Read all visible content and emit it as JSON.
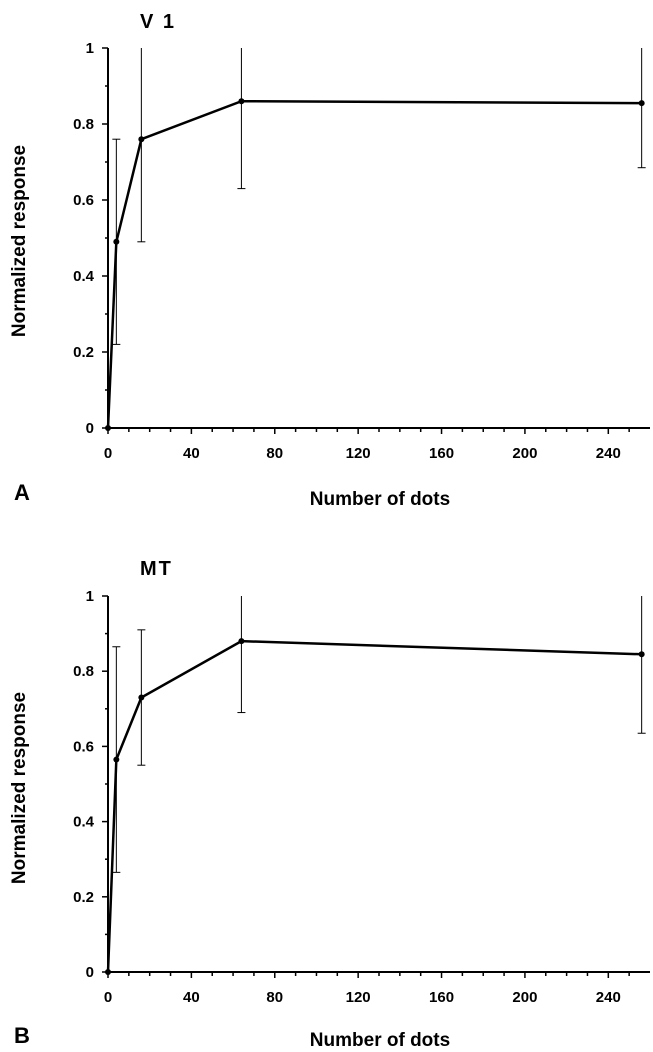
{
  "chart_data": [
    {
      "type": "line",
      "panel_letter": "A",
      "title": "V 1",
      "xlabel": "Number of dots",
      "ylabel": "Normalized response",
      "xlim": [
        0,
        260
      ],
      "ylim": [
        0,
        1
      ],
      "x_ticks": [
        "0",
        "40",
        "80",
        "120",
        "160",
        "200",
        "240"
      ],
      "y_ticks": [
        "0",
        "0.2",
        "0.4",
        "0.6",
        "0.8",
        "1"
      ],
      "grid": false,
      "legend": "none",
      "series": [
        {
          "x": [
            0,
            4,
            16,
            64,
            256
          ],
          "y": [
            0,
            0.49,
            0.76,
            0.86,
            0.855
          ],
          "error_low": [
            null,
            0.22,
            0.49,
            0.63,
            0.685
          ],
          "error_high": [
            null,
            0.76,
            1.0,
            1.0,
            1.0
          ]
        }
      ]
    },
    {
      "type": "line",
      "panel_letter": "B",
      "title": "MT",
      "xlabel": "Number of dots",
      "ylabel": "Normalized response",
      "xlim": [
        0,
        260
      ],
      "ylim": [
        0,
        1
      ],
      "x_ticks": [
        "0",
        "40",
        "80",
        "120",
        "160",
        "200",
        "240"
      ],
      "y_ticks": [
        "0",
        "0.2",
        "0.4",
        "0.6",
        "0.8",
        "1"
      ],
      "grid": false,
      "legend": "none",
      "series": [
        {
          "x": [
            0,
            4,
            16,
            64,
            256
          ],
          "y": [
            0,
            0.565,
            0.73,
            0.88,
            0.845
          ],
          "error_low": [
            null,
            0.265,
            0.55,
            0.69,
            0.635
          ],
          "error_high": [
            null,
            0.865,
            0.91,
            1.0,
            1.0
          ]
        }
      ]
    }
  ]
}
